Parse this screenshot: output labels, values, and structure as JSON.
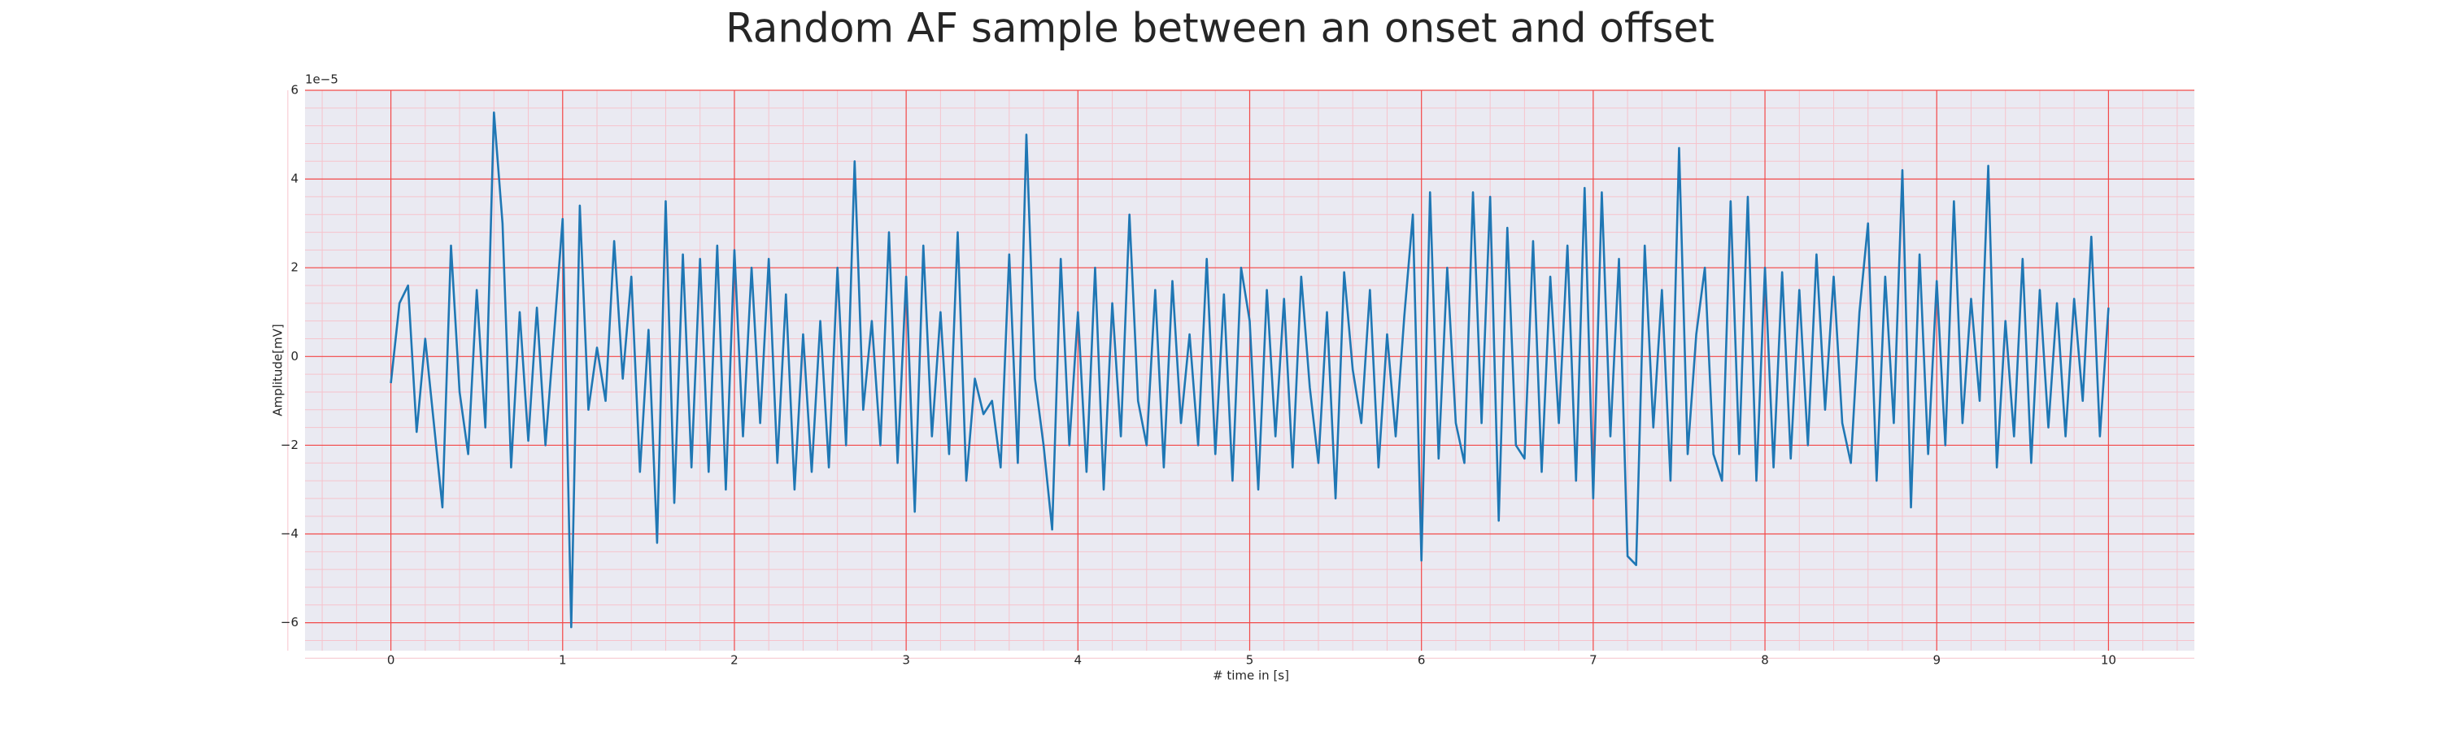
{
  "chart_data": {
    "type": "line",
    "title": "Random AF sample between an onset and offset",
    "x_label": "# time in [s]",
    "y_label": "Amplitude[mV]",
    "y_offset_label": "1e−5",
    "xlim": [
      -0.5,
      10.5
    ],
    "ylim": [
      -6.63,
      6
    ],
    "xticks": [
      0,
      1,
      2,
      3,
      4,
      5,
      6,
      7,
      8,
      9,
      10
    ],
    "yticks": [
      {
        "value": -6,
        "label": "−6"
      },
      {
        "value": -4,
        "label": "−4"
      },
      {
        "value": -2,
        "label": "−2"
      },
      0,
      2,
      4,
      6
    ],
    "grid": true,
    "minor_grid": true,
    "x": [
      0,
      0.05,
      0.1,
      0.15,
      0.2,
      0.25,
      0.3,
      0.35,
      0.4,
      0.45,
      0.5,
      0.55,
      0.6,
      0.65,
      0.7,
      0.75,
      0.8,
      0.85,
      0.9,
      0.95,
      1,
      1.05,
      1.1,
      1.15,
      1.2,
      1.25,
      1.3,
      1.35,
      1.4,
      1.45,
      1.5,
      1.55,
      1.6,
      1.65,
      1.7,
      1.75,
      1.8,
      1.85,
      1.9,
      1.95,
      2,
      2.05,
      2.1,
      2.15,
      2.2,
      2.25,
      2.3,
      2.35,
      2.4,
      2.45,
      2.5,
      2.55,
      2.6,
      2.65,
      2.7,
      2.75,
      2.8,
      2.85,
      2.9,
      2.95,
      3,
      3.05,
      3.1,
      3.15,
      3.2,
      3.25,
      3.3,
      3.35,
      3.4,
      3.45,
      3.5,
      3.55,
      3.6,
      3.65,
      3.7,
      3.75,
      3.8,
      3.85,
      3.9,
      3.95,
      4,
      4.05,
      4.1,
      4.15,
      4.2,
      4.25,
      4.3,
      4.35,
      4.4,
      4.45,
      4.5,
      4.55,
      4.6,
      4.65,
      4.7,
      4.75,
      4.8,
      4.85,
      4.9,
      4.95,
      5,
      5.05,
      5.1,
      5.15,
      5.2,
      5.25,
      5.3,
      5.35,
      5.4,
      5.45,
      5.5,
      5.55,
      5.6,
      5.65,
      5.7,
      5.75,
      5.8,
      5.85,
      5.9,
      5.95,
      6,
      6.05,
      6.1,
      6.15,
      6.2,
      6.25,
      6.3,
      6.35,
      6.4,
      6.45,
      6.5,
      6.55,
      6.6,
      6.65,
      6.7,
      6.75,
      6.8,
      6.85,
      6.9,
      6.95,
      7,
      7.05,
      7.1,
      7.15,
      7.2,
      7.25,
      7.3,
      7.35,
      7.4,
      7.45,
      7.5,
      7.55,
      7.6,
      7.65,
      7.7,
      7.75,
      7.8,
      7.85,
      7.9,
      7.95,
      8,
      8.05,
      8.1,
      8.15,
      8.2,
      8.25,
      8.3,
      8.35,
      8.4,
      8.45,
      8.5,
      8.55,
      8.6,
      8.65,
      8.7,
      8.75,
      8.8,
      8.85,
      8.9,
      8.95,
      9,
      9.05,
      9.1,
      9.15,
      9.2,
      9.25,
      9.3,
      9.35,
      9.4,
      9.45,
      9.5,
      9.55,
      9.6,
      9.65,
      9.7,
      9.75,
      9.8,
      9.85,
      9.9,
      9.95,
      10
    ],
    "series": [
      {
        "color": "#1f77b4",
        "values": [
          -0.6,
          1.2,
          1.6,
          -1.7,
          0.4,
          -1.5,
          -3.4,
          2.5,
          -0.8,
          -2.2,
          1.5,
          -1.6,
          5.5,
          3.0,
          -2.5,
          1.0,
          -1.9,
          1.1,
          -2.0,
          0.5,
          3.1,
          -6.1,
          3.4,
          -1.2,
          0.2,
          -1.0,
          2.6,
          -0.5,
          1.8,
          -2.6,
          0.6,
          -4.2,
          3.5,
          -3.3,
          2.3,
          -2.5,
          2.2,
          -2.6,
          2.5,
          -3.0,
          2.4,
          -1.8,
          2.0,
          -1.5,
          2.2,
          -2.4,
          1.4,
          -3.0,
          0.5,
          -2.6,
          0.8,
          -2.5,
          2.0,
          -2.0,
          4.4,
          -1.2,
          0.8,
          -2.0,
          2.8,
          -2.4,
          1.8,
          -3.5,
          2.5,
          -1.8,
          1.0,
          -2.2,
          2.8,
          -2.8,
          -0.5,
          -1.3,
          -1.0,
          -2.5,
          2.3,
          -2.4,
          5.0,
          -0.5,
          -2.0,
          -3.9,
          2.2,
          -2.0,
          1.0,
          -2.6,
          2.0,
          -3.0,
          1.2,
          -1.8,
          3.2,
          -1.0,
          -2.0,
          1.5,
          -2.5,
          1.7,
          -1.5,
          0.5,
          -2.0,
          2.2,
          -2.2,
          1.4,
          -2.8,
          2.0,
          0.8,
          -3.0,
          1.5,
          -1.8,
          1.3,
          -2.5,
          1.8,
          -0.7,
          -2.4,
          1.0,
          -3.2,
          1.9,
          -0.3,
          -1.5,
          1.5,
          -2.5,
          0.5,
          -1.8,
          0.9,
          3.2,
          -4.6,
          3.7,
          -2.3,
          2.0,
          -1.5,
          -2.4,
          3.7,
          -1.5,
          3.6,
          -3.7,
          2.9,
          -2.0,
          -2.3,
          2.6,
          -2.6,
          1.8,
          -1.5,
          2.5,
          -2.8,
          3.8,
          -3.2,
          3.7,
          -1.8,
          2.2,
          -4.5,
          -4.7,
          2.5,
          -1.6,
          1.5,
          -2.8,
          4.7,
          -2.2,
          0.5,
          2.0,
          -2.2,
          -2.8,
          3.5,
          -2.2,
          3.6,
          -2.8,
          2.0,
          -2.5,
          1.9,
          -2.3,
          1.5,
          -2.0,
          2.3,
          -1.2,
          1.8,
          -1.5,
          -2.4,
          1.0,
          3.0,
          -2.8,
          1.8,
          -1.5,
          4.2,
          -3.4,
          2.3,
          -2.2,
          1.7,
          -2.0,
          3.5,
          -1.5,
          1.3,
          -1.0,
          4.3,
          -2.5,
          0.8,
          -1.8,
          2.2,
          -2.4,
          1.5,
          -1.6,
          1.2,
          -1.8,
          1.3,
          -1.0,
          2.7,
          -1.8,
          1.1
        ]
      }
    ]
  }
}
